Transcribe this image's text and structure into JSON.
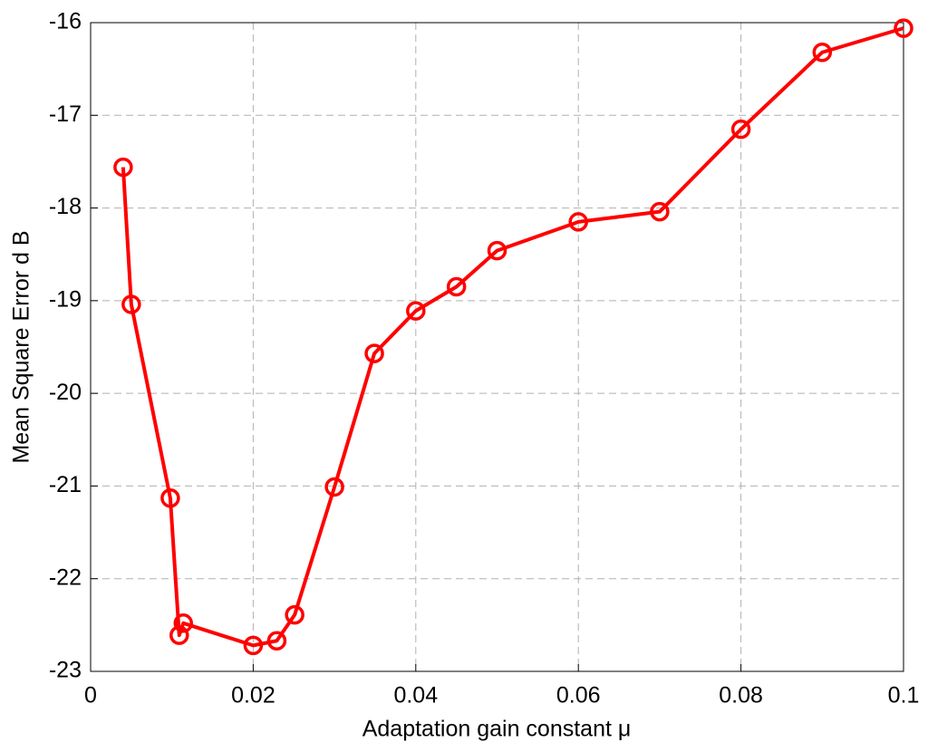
{
  "chart_data": {
    "type": "line",
    "xlabel": "Adaptation gain constant μ",
    "ylabel": "Mean Square Error d B",
    "x": [
      0.004,
      0.005,
      0.0098,
      0.0109,
      0.0114,
      0.02,
      0.0229,
      0.0251,
      0.03,
      0.0349,
      0.04,
      0.045,
      0.05,
      0.06,
      0.07,
      0.08,
      0.09,
      0.1
    ],
    "series": [
      {
        "color": "#ff0000",
        "values": [
          -17.56,
          -19.04,
          -21.13,
          -22.61,
          -22.48,
          -22.72,
          -22.67,
          -22.39,
          -21.01,
          -19.57,
          -19.11,
          -18.85,
          -18.46,
          -18.15,
          -18.04,
          -17.15,
          -16.32,
          -16.06
        ]
      }
    ],
    "xlim": [
      0,
      0.1
    ],
    "xticks": [
      0,
      0.02,
      0.04,
      0.06,
      0.08,
      0.1
    ],
    "ylim": [
      -23,
      -16
    ],
    "yticks": [
      -23,
      -22,
      -21,
      -20,
      -19,
      -18,
      -17,
      -16
    ],
    "grid": true
  }
}
